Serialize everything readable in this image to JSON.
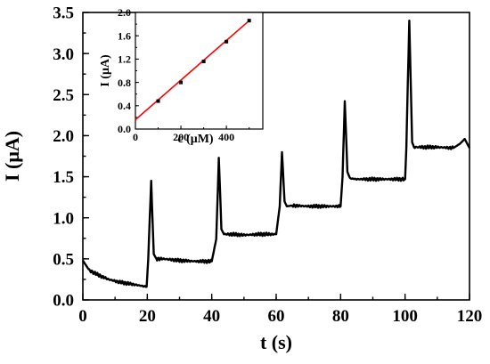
{
  "chart_data": [
    {
      "type": "line",
      "xlabel": "t (s)",
      "ylabel": "I (μA)",
      "xlim": [
        0,
        120
      ],
      "ylim": [
        0,
        3.5
      ],
      "xticks": [
        "0",
        "20",
        "40",
        "60",
        "80",
        "100",
        "120"
      ],
      "yticks": [
        "0.0",
        "0.5",
        "1.0",
        "1.5",
        "2.0",
        "2.5",
        "3.0",
        "3.5"
      ],
      "grid": false,
      "line_color": "#000000",
      "series": [
        {
          "x": [
            0,
            2,
            5,
            8,
            11,
            14,
            17,
            19.8,
            20.3,
            21.2,
            22,
            22.8,
            25,
            30,
            35,
            40,
            41.4,
            42.2,
            43,
            43.8,
            46,
            50,
            55,
            60,
            61.1,
            61.8,
            62.6,
            63.3,
            65,
            70,
            75,
            80,
            80.6,
            81.3,
            82.1,
            82.9,
            85,
            90,
            95,
            100,
            100.4,
            101.3,
            102.2,
            102.8,
            105,
            110,
            115,
            117,
            118.5,
            120
          ],
          "y": [
            0.48,
            0.36,
            0.3,
            0.25,
            0.22,
            0.2,
            0.18,
            0.16,
            0.5,
            1.45,
            0.56,
            0.5,
            0.5,
            0.48,
            0.47,
            0.47,
            0.74,
            1.73,
            0.86,
            0.8,
            0.8,
            0.79,
            0.8,
            0.8,
            1.14,
            1.8,
            1.2,
            1.14,
            1.15,
            1.14,
            1.14,
            1.14,
            1.5,
            2.42,
            1.56,
            1.48,
            1.47,
            1.47,
            1.47,
            1.47,
            1.85,
            3.4,
            1.92,
            1.86,
            1.86,
            1.86,
            1.85,
            1.9,
            1.96,
            1.85
          ]
        }
      ]
    },
    {
      "type": "scatter",
      "xlabel": "c (μM)",
      "ylabel": "I (μA)",
      "xlim": [
        0,
        560
      ],
      "ylim": [
        0,
        2.0
      ],
      "xticks": [
        "0",
        "200",
        "400"
      ],
      "yticks": [
        "0.0",
        "0.4",
        "0.8",
        "1.2",
        "1.6",
        "2.0"
      ],
      "grid": false,
      "marker_color": "#000000",
      "fit_line_color": "#ff0000",
      "series": [
        {
          "x": [
            100,
            200,
            300,
            400,
            500
          ],
          "y": [
            0.48,
            0.8,
            1.16,
            1.5,
            1.86
          ]
        }
      ],
      "fit_line": {
        "x": [
          0,
          500
        ],
        "y": [
          0.16,
          1.86
        ]
      }
    }
  ]
}
